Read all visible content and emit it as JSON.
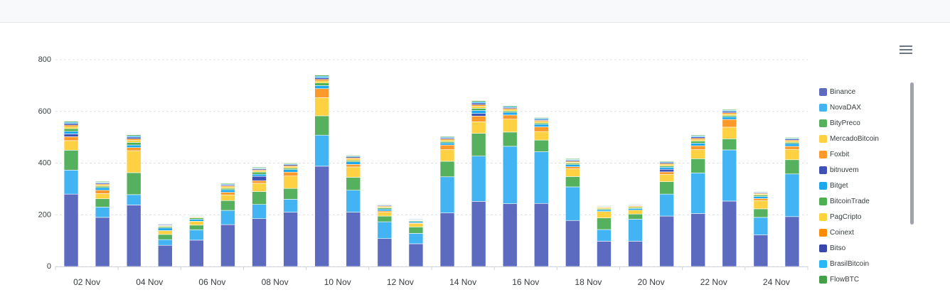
{
  "window": {
    "topbar": ""
  },
  "toolbar": {
    "menu_icon": "hamburger-menu-icon"
  },
  "chart_data": {
    "type": "bar",
    "stacked": true,
    "y_ticks": [
      "0",
      "200",
      "400",
      "600",
      "800"
    ],
    "ylim": [
      0,
      800
    ],
    "x_ticks": [
      "02 Nov",
      "04 Nov",
      "06 Nov",
      "08 Nov",
      "10 Nov",
      "12 Nov",
      "14 Nov",
      "16 Nov",
      "18 Nov",
      "20 Nov",
      "22 Nov",
      "24 Nov"
    ],
    "grid": true,
    "legend_position": "right",
    "series": [
      {
        "name": "Binance",
        "color": "#5c6bc0",
        "values": [
          280,
          190,
          238,
          82,
          102,
          162,
          185,
          210,
          388,
          210,
          108,
          88,
          207,
          252,
          243,
          244,
          178,
          98,
          98,
          195,
          205,
          253,
          122,
          193
        ]
      },
      {
        "name": "NovaDAX",
        "color": "#42b4f4",
        "values": [
          93,
          40,
          40,
          22,
          40,
          55,
          55,
          50,
          120,
          85,
          65,
          40,
          140,
          175,
          222,
          200,
          130,
          45,
          85,
          85,
          157,
          198,
          68,
          165
        ]
      },
      {
        "name": "BityPreco",
        "color": "#56b15e",
        "values": [
          77,
          32,
          85,
          20,
          18,
          38,
          50,
          42,
          75,
          50,
          22,
          25,
          60,
          88,
          55,
          45,
          40,
          45,
          20,
          48,
          55,
          43,
          33,
          55
        ]
      },
      {
        "name": "MercadoBitcoin",
        "color": "#fdd141",
        "values": [
          37,
          20,
          85,
          15,
          15,
          22,
          32,
          48,
          70,
          40,
          15,
          13,
          45,
          45,
          50,
          33,
          30,
          25,
          15,
          28,
          35,
          45,
          32,
          40
        ]
      },
      {
        "name": "Foxbit",
        "color": "#fb9a2a",
        "values": [
          15,
          13,
          12,
          0,
          0,
          10,
          10,
          15,
          35,
          10,
          5,
          3,
          18,
          22,
          16,
          18,
          8,
          0,
          0,
          10,
          15,
          30,
          8,
          12
        ]
      },
      {
        "name": "bitnuvem",
        "color": "#3f51b5",
        "values": [
          11,
          0,
          0,
          0,
          0,
          0,
          17,
          0,
          0,
          0,
          0,
          0,
          0,
          10,
          0,
          0,
          0,
          0,
          0,
          10,
          0,
          0,
          0,
          0
        ]
      },
      {
        "name": "Bitget",
        "color": "#1da7ec",
        "values": [
          10,
          10,
          10,
          10,
          8,
          10,
          8,
          10,
          12,
          10,
          7,
          5,
          8,
          12,
          10,
          10,
          8,
          6,
          6,
          8,
          10,
          10,
          8,
          10
        ]
      },
      {
        "name": "BitcoinTrade",
        "color": "#4caf50",
        "values": [
          10,
          5,
          10,
          5,
          5,
          5,
          8,
          5,
          10,
          5,
          5,
          3,
          5,
          8,
          5,
          5,
          5,
          4,
          4,
          5,
          8,
          5,
          5,
          5
        ]
      },
      {
        "name": "PagCripto",
        "color": "#fbd33c",
        "values": [
          8,
          5,
          8,
          3,
          3,
          6,
          5,
          6,
          8,
          6,
          4,
          2,
          6,
          8,
          6,
          6,
          4,
          4,
          4,
          5,
          6,
          6,
          4,
          5
        ]
      },
      {
        "name": "Coinext",
        "color": "#fb8c00",
        "values": [
          6,
          4,
          6,
          2,
          2,
          4,
          4,
          4,
          6,
          4,
          3,
          2,
          4,
          6,
          4,
          4,
          4,
          3,
          3,
          4,
          5,
          5,
          3,
          4
        ]
      },
      {
        "name": "Bitso",
        "color": "#3949ab",
        "values": [
          6,
          4,
          6,
          3,
          2,
          4,
          4,
          4,
          6,
          4,
          3,
          2,
          4,
          6,
          4,
          4,
          4,
          2,
          2,
          4,
          5,
          5,
          3,
          4
        ]
      },
      {
        "name": "BrasilBitcoin",
        "color": "#29b6f6",
        "values": [
          5,
          3,
          5,
          2,
          2,
          3,
          3,
          3,
          6,
          3,
          2,
          2,
          3,
          5,
          4,
          4,
          3,
          2,
          2,
          3,
          4,
          4,
          2,
          3
        ]
      },
      {
        "name": "FlowBTC",
        "color": "#43a047",
        "values": [
          4,
          3,
          4,
          2,
          2,
          3,
          3,
          3,
          4,
          3,
          2,
          1,
          3,
          4,
          3,
          3,
          3,
          2,
          2,
          3,
          3,
          3,
          2,
          3
        ]
      }
    ]
  }
}
